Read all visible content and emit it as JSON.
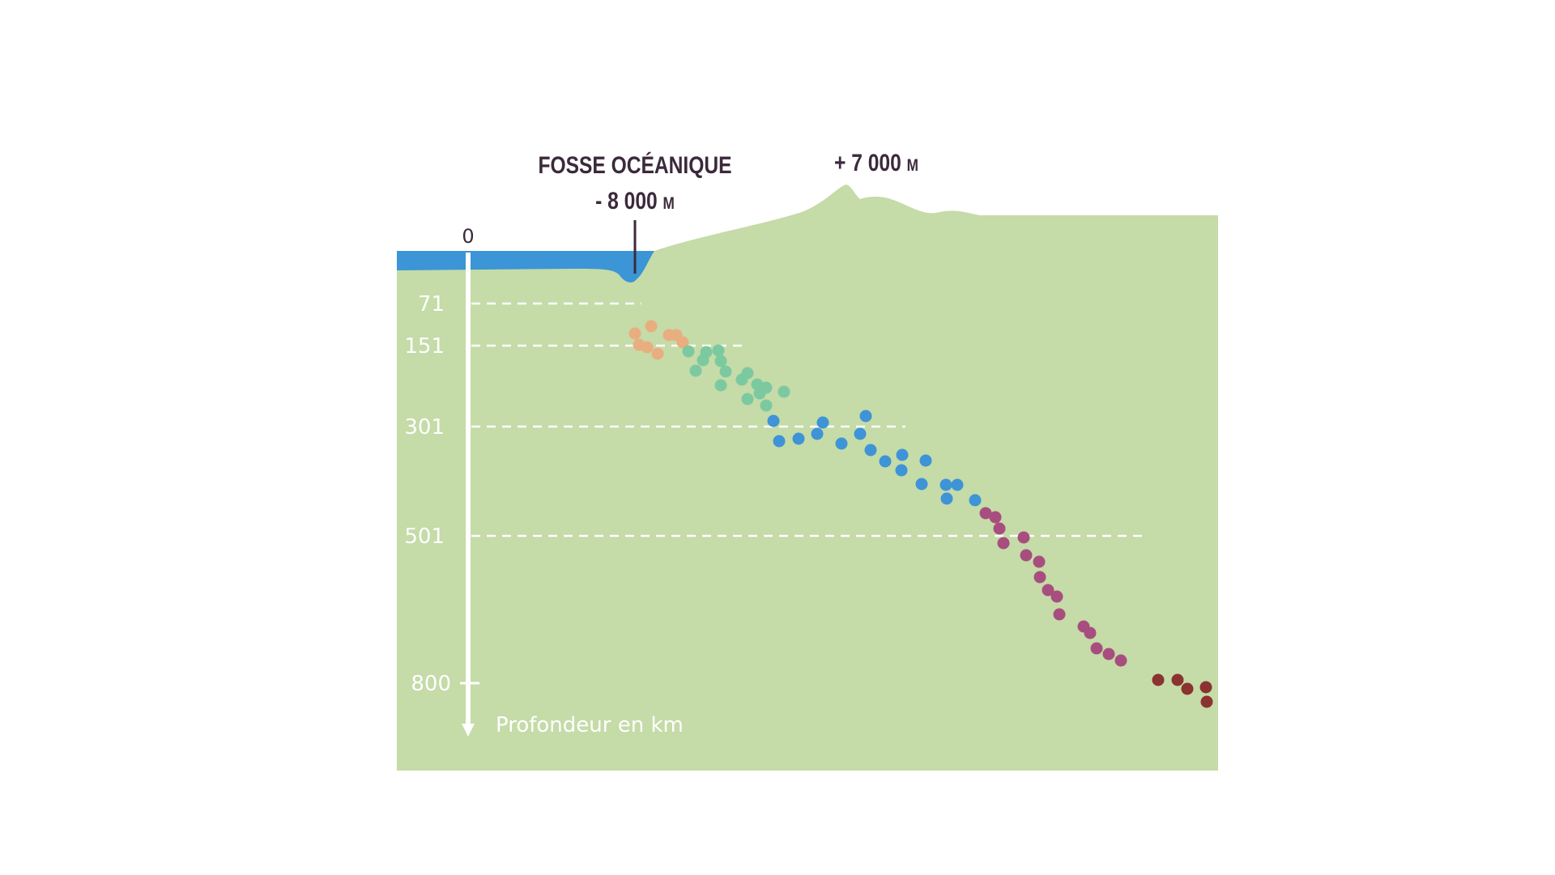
{
  "trench_label": {
    "name": "FOSSE OCÉANIQUE",
    "depth_value": "- 8 000",
    "unit": "M"
  },
  "peak_label": {
    "value": "+ 7 000",
    "unit": "M"
  },
  "axis": {
    "title": "Profondeur en km",
    "zero": "0",
    "max": "800",
    "ticks": [
      {
        "label": "71",
        "depth": 71
      },
      {
        "label": "151",
        "depth": 151
      },
      {
        "label": "301",
        "depth": 301
      },
      {
        "label": "501",
        "depth": 501
      }
    ]
  },
  "colors": {
    "land": "#c5dba8",
    "ocean": "#3b95d6",
    "text_dark": "#3b2a3b",
    "white": "#ffffff",
    "band_0_71": "#e8ae80",
    "band_71_151": "#7cc9a0",
    "band_151_301": "#3e94d6",
    "band_301_501": "#a84e7f",
    "band_501_800": "#8a3330"
  },
  "earthquakes": {
    "band_0_71": [
      [
        0,
        56
      ],
      [
        20,
        47
      ],
      [
        5,
        70
      ],
      [
        42,
        58
      ],
      [
        15,
        73
      ],
      [
        28,
        81
      ],
      [
        51,
        58
      ],
      [
        59,
        67
      ]
    ],
    "band_71_151": [
      [
        66,
        78
      ],
      [
        88,
        79
      ],
      [
        103,
        77
      ],
      [
        84,
        89
      ],
      [
        106,
        90
      ],
      [
        112,
        103
      ],
      [
        75,
        102
      ],
      [
        139,
        105
      ],
      [
        132,
        113
      ],
      [
        106,
        120
      ],
      [
        151,
        119
      ],
      [
        162,
        123
      ],
      [
        154,
        130
      ],
      [
        184,
        128
      ],
      [
        139,
        137
      ],
      [
        162,
        145
      ]
    ],
    "band_151_301": [
      [
        171,
        164
      ],
      [
        178,
        189
      ],
      [
        202,
        186
      ],
      [
        225,
        180
      ],
      [
        232,
        166
      ],
      [
        255,
        192
      ],
      [
        278,
        180
      ],
      [
        285,
        158
      ],
      [
        291,
        200
      ],
      [
        309,
        214
      ],
      [
        329,
        225
      ],
      [
        330,
        206
      ],
      [
        354,
        242
      ],
      [
        359,
        213
      ],
      [
        384,
        243
      ],
      [
        398,
        243
      ],
      [
        385,
        260
      ],
      [
        420,
        262
      ]
    ],
    "band_301_501": [
      [
        433,
        278
      ],
      [
        445,
        283
      ],
      [
        450,
        297
      ],
      [
        455,
        315
      ],
      [
        480,
        308
      ],
      [
        483,
        330
      ],
      [
        499,
        338
      ],
      [
        500,
        357
      ],
      [
        510,
        373
      ],
      [
        521,
        381
      ],
      [
        524,
        403
      ],
      [
        554,
        418
      ],
      [
        562,
        426
      ],
      [
        570,
        445
      ],
      [
        585,
        452
      ],
      [
        600,
        460
      ]
    ],
    "band_501_800": [
      [
        646,
        484
      ],
      [
        670,
        484
      ],
      [
        682,
        495
      ],
      [
        705,
        493
      ],
      [
        706,
        511
      ]
    ]
  }
}
